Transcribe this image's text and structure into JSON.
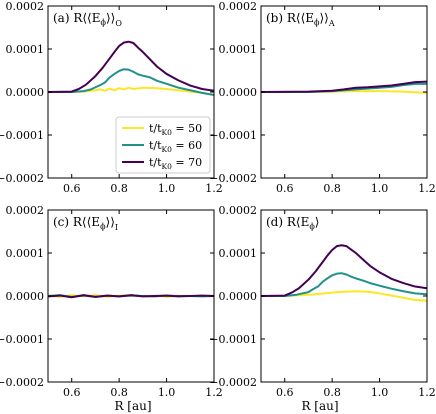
{
  "figure": {
    "xlabel": "R [au]"
  },
  "legend": {
    "entries": [
      {
        "name": "t/tK0 = 50",
        "base": "t/t",
        "sub": "K0",
        "rest": " = 50",
        "color": "#fde725"
      },
      {
        "name": "t/tK0 = 60",
        "base": "t/t",
        "sub": "K0",
        "rest": " = 60",
        "color": "#21918c"
      },
      {
        "name": "t/tK0 = 70",
        "base": "t/t",
        "sub": "K0",
        "rest": " = 70",
        "color": "#440154"
      }
    ]
  },
  "chart_data": [
    {
      "type": "line",
      "panel": "a",
      "title_prefix": "(a) R⟨⟨E",
      "title_sub_phi": "ϕ",
      "title_suffix": "⟩⟩",
      "title_sub": "O",
      "xlim": [
        0.5,
        1.2
      ],
      "ylim": [
        -0.0002,
        0.0002
      ],
      "xticks": [
        "0.6",
        "0.8",
        "1.0",
        "1.2"
      ],
      "yticks": [
        "−0.0002",
        "−0.0001",
        "0.0000",
        "0.0001",
        "0.0002"
      ],
      "series": [
        {
          "name": "t/tK0 = 50",
          "color": "#fde725",
          "x": [
            0.5,
            0.6,
            0.65,
            0.7,
            0.72,
            0.74,
            0.76,
            0.78,
            0.8,
            0.82,
            0.84,
            0.86,
            0.9,
            0.95,
            1.0,
            1.05,
            1.1,
            1.15,
            1.2
          ],
          "y": [
            0,
            0,
            1e-06,
            4e-06,
            6e-06,
            3e-06,
            8e-06,
            4e-06,
            9e-06,
            6e-06,
            1e-05,
            7e-06,
            1e-05,
            9e-06,
            7e-06,
            4e-06,
            1e-06,
            -2e-06,
            -6e-06
          ]
        },
        {
          "name": "t/tK0 = 60",
          "color": "#21918c",
          "x": [
            0.5,
            0.6,
            0.65,
            0.68,
            0.7,
            0.72,
            0.74,
            0.76,
            0.78,
            0.8,
            0.82,
            0.84,
            0.86,
            0.88,
            0.9,
            0.93,
            0.96,
            1.0,
            1.05,
            1.1,
            1.15,
            1.2
          ],
          "y": [
            0,
            0,
            2e-06,
            6e-06,
            1.1e-05,
            1.6e-05,
            2.2e-05,
            3.4e-05,
            4.2e-05,
            4.9e-05,
            5.3e-05,
            5.2e-05,
            4.7e-05,
            4.1e-05,
            3.8e-05,
            3.4e-05,
            2.6e-05,
            1.9e-05,
            1e-05,
            4e-06,
            -2e-06,
            -7e-06
          ]
        },
        {
          "name": "t/tK0 = 70",
          "color": "#440154",
          "x": [
            0.5,
            0.6,
            0.63,
            0.66,
            0.7,
            0.73,
            0.76,
            0.78,
            0.8,
            0.82,
            0.84,
            0.86,
            0.88,
            0.9,
            0.93,
            0.96,
            1.0,
            1.05,
            1.1,
            1.15,
            1.2
          ],
          "y": [
            0,
            1e-06,
            7e-06,
            1.7e-05,
            3.7e-05,
            5.6e-05,
            7.8e-05,
            9.3e-05,
            0.000107,
            0.000115,
            0.000117,
            0.000114,
            0.000103,
            9.3e-05,
            7.6e-05,
            5.9e-05,
            4.2e-05,
            2.7e-05,
            1.5e-05,
            7e-06,
            3e-06
          ]
        }
      ]
    },
    {
      "type": "line",
      "panel": "b",
      "title_prefix": "(b) R⟨⟨E",
      "title_sub_phi": "ϕ",
      "title_suffix": "⟩⟩",
      "title_sub": "A",
      "xlim": [
        0.5,
        1.2
      ],
      "ylim": [
        -0.0002,
        0.0002
      ],
      "xticks": [
        "0.6",
        "0.8",
        "1.0",
        "1.2"
      ],
      "yticks": [
        "−0.0002",
        "−0.0001",
        "0.0000",
        "0.0001",
        "0.0002"
      ],
      "series": [
        {
          "name": "t/tK0 = 50",
          "color": "#fde725",
          "x": [
            0.5,
            0.7,
            0.8,
            0.9,
            1.0,
            1.1,
            1.2
          ],
          "y": [
            0,
            0,
            1e-06,
            2e-06,
            2e-06,
            1e-06,
            -2e-06
          ]
        },
        {
          "name": "t/tK0 = 60",
          "color": "#21918c",
          "x": [
            0.5,
            0.7,
            0.8,
            0.9,
            1.0,
            1.05,
            1.1,
            1.15,
            1.2
          ],
          "y": [
            0,
            0,
            2e-06,
            6e-06,
            1e-05,
            1.2e-05,
            1.6e-05,
            1.9e-05,
            1.9e-05
          ]
        },
        {
          "name": "t/tK0 = 70",
          "color": "#440154",
          "x": [
            0.5,
            0.7,
            0.8,
            0.85,
            0.9,
            0.95,
            1.0,
            1.05,
            1.1,
            1.15,
            1.2
          ],
          "y": [
            0,
            1e-06,
            3e-06,
            6e-06,
            1e-05,
            1.1e-05,
            1.3e-05,
            1.5e-05,
            1.9e-05,
            2.3e-05,
            2.4e-05
          ]
        }
      ]
    },
    {
      "type": "line",
      "panel": "c",
      "title_prefix": "(c) R⟨⟨E",
      "title_sub_phi": "ϕ",
      "title_suffix": "⟩⟩",
      "title_sub": "I",
      "xlim": [
        0.5,
        1.2
      ],
      "ylim": [
        -0.0002,
        0.0002
      ],
      "xticks": [
        "0.6",
        "0.8",
        "1.0",
        "1.2"
      ],
      "yticks": [
        "−0.0002",
        "−0.0001",
        "0.0000",
        "0.0001",
        "0.0002"
      ],
      "series": [
        {
          "name": "t/tK0 = 50",
          "color": "#fde725",
          "x": [
            0.5,
            0.55,
            0.6,
            0.65,
            0.7,
            0.75,
            0.8,
            0.85,
            0.9,
            0.95,
            1.0,
            1.05,
            1.1,
            1.15,
            1.2
          ],
          "y": [
            1e-06,
            -2e-06,
            2e-06,
            -1e-06,
            2e-06,
            -2e-06,
            1e-06,
            2e-06,
            -1e-06,
            1e-06,
            -2e-06,
            1e-06,
            0,
            1e-06,
            0
          ]
        },
        {
          "name": "t/tK0 = 60",
          "color": "#21918c",
          "x": [
            0.5,
            0.55,
            0.6,
            0.65,
            0.7,
            0.75,
            0.8,
            0.85,
            0.9,
            0.95,
            1.0,
            1.05,
            1.1,
            1.15,
            1.2
          ],
          "y": [
            0,
            2e-06,
            -2e-06,
            1e-06,
            -2e-06,
            1e-06,
            -1e-06,
            1e-06,
            0,
            -1e-06,
            1e-06,
            0,
            0,
            -1e-06,
            0
          ]
        },
        {
          "name": "t/tK0 = 70",
          "color": "#440154",
          "x": [
            0.5,
            0.55,
            0.6,
            0.65,
            0.7,
            0.75,
            0.8,
            0.85,
            0.9,
            0.95,
            1.0,
            1.05,
            1.1,
            1.15,
            1.2
          ],
          "y": [
            -1e-06,
            1e-06,
            -3e-06,
            2e-06,
            -2e-06,
            1e-06,
            -1e-06,
            2e-06,
            -1e-06,
            0,
            1e-06,
            -1e-06,
            0,
            1e-06,
            0
          ]
        }
      ]
    },
    {
      "type": "line",
      "panel": "d",
      "title_prefix": "(d) R⟨E",
      "title_sub_phi": "ϕ",
      "title_suffix": "⟩",
      "title_sub": "",
      "xlim": [
        0.5,
        1.2
      ],
      "ylim": [
        -0.0002,
        0.0002
      ],
      "xticks": [
        "0.6",
        "0.8",
        "1.0",
        "1.2"
      ],
      "yticks": [
        "−0.0002",
        "−0.0001",
        "0.0000",
        "0.0001",
        "0.0002"
      ],
      "series": [
        {
          "name": "t/tK0 = 50",
          "color": "#fde725",
          "x": [
            0.5,
            0.6,
            0.7,
            0.75,
            0.8,
            0.85,
            0.9,
            0.95,
            1.0,
            1.05,
            1.1,
            1.15,
            1.2
          ],
          "y": [
            0,
            0,
            3e-06,
            5e-06,
            8e-06,
            1e-05,
            1.1e-05,
            1e-05,
            6e-06,
            1e-06,
            -4e-06,
            -9e-06,
            -1.1e-05
          ]
        },
        {
          "name": "t/tK0 = 60",
          "color": "#21918c",
          "x": [
            0.5,
            0.6,
            0.65,
            0.7,
            0.72,
            0.74,
            0.76,
            0.78,
            0.8,
            0.82,
            0.84,
            0.86,
            0.88,
            0.9,
            0.93,
            0.96,
            1.0,
            1.05,
            1.1,
            1.15,
            1.2
          ],
          "y": [
            0,
            0,
            3e-06,
            9e-06,
            1.6e-05,
            2.2e-05,
            3.3e-05,
            4.1e-05,
            4.8e-05,
            5.2e-05,
            5.3e-05,
            5e-05,
            4.5e-05,
            4.1e-05,
            3.6e-05,
            3e-05,
            2.4e-05,
            1.7e-05,
            1.1e-05,
            6e-06,
            4e-06
          ]
        },
        {
          "name": "t/tK0 = 70",
          "color": "#440154",
          "x": [
            0.5,
            0.6,
            0.63,
            0.66,
            0.7,
            0.73,
            0.76,
            0.78,
            0.8,
            0.82,
            0.84,
            0.86,
            0.88,
            0.9,
            0.93,
            0.96,
            1.0,
            1.05,
            1.1,
            1.15,
            1.2
          ],
          "y": [
            0,
            1e-06,
            8e-06,
            1.8e-05,
            3.8e-05,
            5.7e-05,
            7.9e-05,
            9.4e-05,
            0.000107,
            0.000116,
            0.000118,
            0.000116,
            0.000108,
            0.0001,
            8.5e-05,
            7e-05,
            5.5e-05,
            4e-05,
            3e-05,
            2.2e-05,
            1.8e-05
          ]
        }
      ]
    }
  ]
}
